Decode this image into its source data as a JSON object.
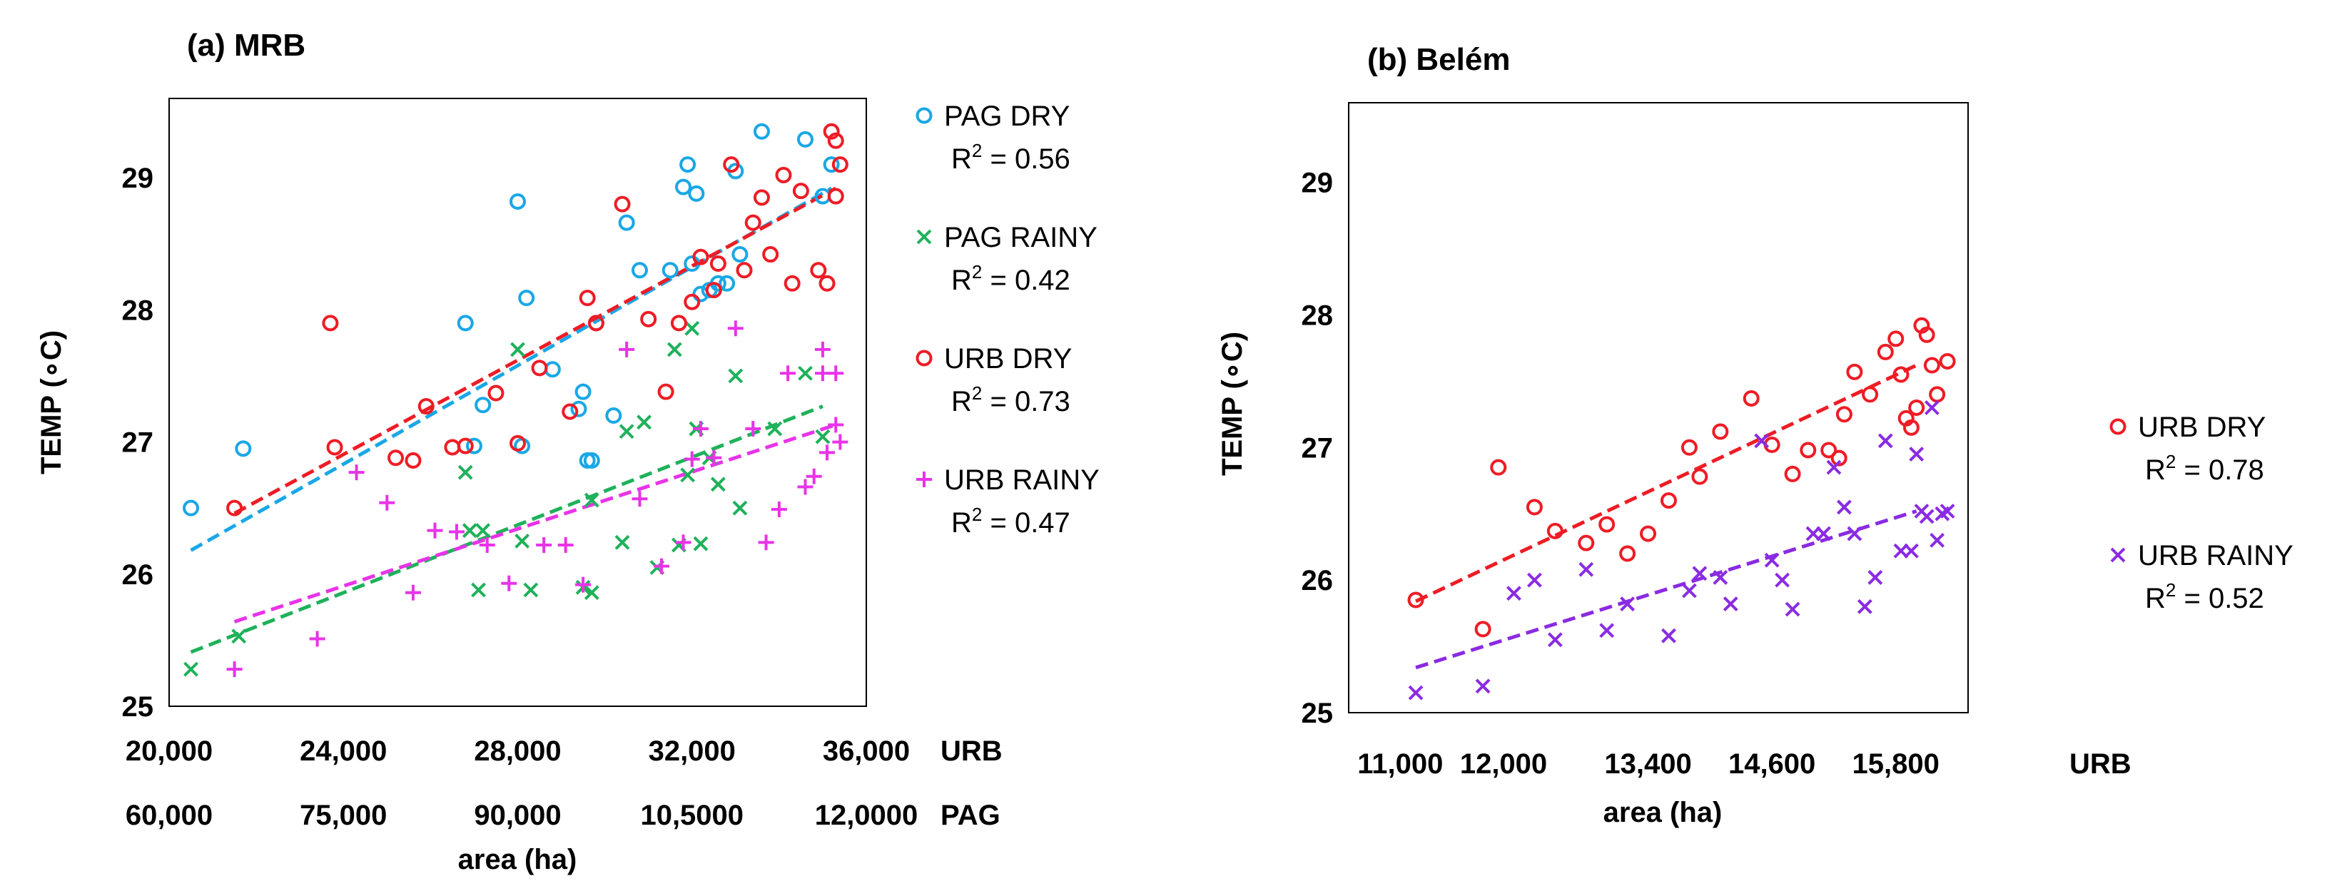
{
  "chart_data": [
    {
      "panel_title": "(a) MRB",
      "type": "scatter",
      "ylabel": "TEMP (∘C)",
      "xlabel": "area (ha)",
      "ylim": [
        25,
        29.6
      ],
      "yticks": [
        "25",
        "26",
        "27",
        "28",
        "29"
      ],
      "x_axes": [
        {
          "name": "URB",
          "range": [
            20000,
            36000
          ],
          "tick_values": [
            20000,
            24000,
            28000,
            32000,
            36000
          ],
          "tick_labels": [
            "20,000",
            "24,000",
            "28,000",
            "32,000",
            "36,000"
          ]
        },
        {
          "name": "PAG",
          "range": [
            60000,
            120000
          ],
          "tick_values": [
            60000,
            75000,
            90000,
            105000,
            120000
          ],
          "tick_labels": [
            "60,000",
            "75,000",
            "90,000",
            "10,5000",
            "12,0000"
          ]
        }
      ],
      "series": [
        {
          "name": "PAG DRY",
          "r2_prefix": "R",
          "r2_sup": "2",
          "r2_value": " = 0.56",
          "marker": "circle",
          "color": "#1aa7e6",
          "trend": {
            "x": [
              20500,
              35200
            ],
            "y": [
              26.18,
              28.92
            ]
          },
          "points": [
            [
              20500,
              26.5
            ],
            [
              21700,
              26.95
            ],
            [
              26800,
              27.9
            ],
            [
              27000,
              26.97
            ],
            [
              27200,
              27.28
            ],
            [
              28000,
              28.82
            ],
            [
              28100,
              26.97
            ],
            [
              28200,
              28.09
            ],
            [
              28800,
              27.55
            ],
            [
              29400,
              27.25
            ],
            [
              29500,
              27.38
            ],
            [
              29600,
              26.86
            ],
            [
              29700,
              26.86
            ],
            [
              29800,
              27.9
            ],
            [
              30200,
              27.2
            ],
            [
              30500,
              28.66
            ],
            [
              30800,
              28.3
            ],
            [
              31500,
              28.3
            ],
            [
              31800,
              28.93
            ],
            [
              31900,
              29.1
            ],
            [
              32000,
              28.35
            ],
            [
              32100,
              28.88
            ],
            [
              32200,
              28.12
            ],
            [
              32400,
              28.15
            ],
            [
              32600,
              28.2
            ],
            [
              32800,
              28.2
            ],
            [
              33000,
              29.05
            ],
            [
              33100,
              28.42
            ],
            [
              33600,
              29.35
            ],
            [
              34600,
              29.29
            ],
            [
              35000,
              28.86
            ],
            [
              35200,
              29.1
            ]
          ]
        },
        {
          "name": "PAG RAINY",
          "r2_prefix": "R",
          "r2_sup": "2",
          "r2_value": " = 0.42",
          "marker": "x",
          "color": "#1fb15a",
          "trend": {
            "x": [
              20500,
              35000
            ],
            "y": [
              25.41,
              27.27
            ]
          },
          "points": [
            [
              20500,
              25.28
            ],
            [
              21600,
              25.53
            ],
            [
              26800,
              26.77
            ],
            [
              26900,
              26.33
            ],
            [
              27100,
              25.88
            ],
            [
              27200,
              26.33
            ],
            [
              28000,
              27.7
            ],
            [
              28100,
              26.25
            ],
            [
              28300,
              25.88
            ],
            [
              29500,
              25.9
            ],
            [
              29700,
              25.86
            ],
            [
              29700,
              26.56
            ],
            [
              30400,
              26.24
            ],
            [
              30500,
              27.08
            ],
            [
              30900,
              27.15
            ],
            [
              31200,
              26.05
            ],
            [
              31600,
              27.7
            ],
            [
              31700,
              26.22
            ],
            [
              31900,
              26.75
            ],
            [
              32000,
              27.86
            ],
            [
              32100,
              27.1
            ],
            [
              32200,
              26.23
            ],
            [
              32400,
              26.88
            ],
            [
              32600,
              26.68
            ],
            [
              33000,
              27.5
            ],
            [
              33100,
              26.5
            ],
            [
              33900,
              27.1
            ],
            [
              34600,
              27.52
            ],
            [
              35000,
              27.04
            ]
          ]
        },
        {
          "name": "URB DRY",
          "r2_prefix": "R",
          "r2_sup": "2",
          "r2_value": " = 0.73",
          "marker": "circle",
          "color": "#ee1c25",
          "trend": {
            "x": [
              21500,
              35300
            ],
            "y": [
              26.46,
              28.92
            ]
          },
          "points": [
            [
              21500,
              26.5
            ],
            [
              23700,
              27.9
            ],
            [
              23800,
              26.96
            ],
            [
              25200,
              26.88
            ],
            [
              25600,
              26.86
            ],
            [
              25900,
              27.27
            ],
            [
              26500,
              26.96
            ],
            [
              26800,
              26.97
            ],
            [
              27500,
              27.37
            ],
            [
              28000,
              26.99
            ],
            [
              28500,
              27.56
            ],
            [
              29200,
              27.23
            ],
            [
              29600,
              28.09
            ],
            [
              29800,
              27.9
            ],
            [
              30400,
              28.8
            ],
            [
              31000,
              27.93
            ],
            [
              31400,
              27.38
            ],
            [
              31700,
              27.9
            ],
            [
              32000,
              28.06
            ],
            [
              32200,
              28.4
            ],
            [
              32500,
              28.15
            ],
            [
              32600,
              28.35
            ],
            [
              32900,
              29.1
            ],
            [
              33200,
              28.3
            ],
            [
              33400,
              28.66
            ],
            [
              33600,
              28.85
            ],
            [
              33800,
              28.42
            ],
            [
              34100,
              29.02
            ],
            [
              34300,
              28.2
            ],
            [
              34500,
              28.9
            ],
            [
              34900,
              28.3
            ],
            [
              35100,
              28.2
            ],
            [
              35200,
              29.35
            ],
            [
              35300,
              28.86
            ],
            [
              35300,
              29.28
            ],
            [
              35400,
              29.1
            ]
          ]
        },
        {
          "name": "URB RAINY",
          "r2_prefix": "R",
          "r2_sup": "2",
          "r2_value": " = 0.47",
          "marker": "plus",
          "color": "#e833e8",
          "trend": {
            "x": [
              21500,
              35300
            ],
            "y": [
              25.64,
              27.13
            ]
          },
          "points": [
            [
              21500,
              25.28
            ],
            [
              23400,
              25.51
            ],
            [
              24300,
              26.77
            ],
            [
              25000,
              26.54
            ],
            [
              25600,
              25.86
            ],
            [
              26100,
              26.33
            ],
            [
              26600,
              26.32
            ],
            [
              27300,
              26.22
            ],
            [
              27800,
              25.93
            ],
            [
              28600,
              26.22
            ],
            [
              29100,
              26.22
            ],
            [
              29500,
              25.92
            ],
            [
              30500,
              27.7
            ],
            [
              30800,
              26.57
            ],
            [
              31300,
              26.06
            ],
            [
              31800,
              26.24
            ],
            [
              32000,
              26.87
            ],
            [
              32200,
              27.1
            ],
            [
              32500,
              26.88
            ],
            [
              33000,
              27.86
            ],
            [
              33400,
              27.1
            ],
            [
              33700,
              26.24
            ],
            [
              34000,
              26.49
            ],
            [
              34200,
              27.52
            ],
            [
              34600,
              26.66
            ],
            [
              34800,
              26.74
            ],
            [
              35000,
              27.52
            ],
            [
              35000,
              27.7
            ],
            [
              35100,
              26.92
            ],
            [
              35300,
              27.52
            ],
            [
              35300,
              27.13
            ],
            [
              35400,
              27.0
            ]
          ]
        }
      ]
    },
    {
      "panel_title": "(b) Belém",
      "type": "scatter",
      "ylabel": "TEMP (∘C)",
      "xlabel": "area (ha)",
      "ylim": [
        25,
        29.6
      ],
      "yticks": [
        "25",
        "26",
        "27",
        "28",
        "29"
      ],
      "x_axes": [
        {
          "name": "URB",
          "range": [
            10500,
            16500
          ],
          "tick_values": [
            11000,
            12000,
            13400,
            14600,
            15800
          ],
          "tick_labels": [
            "11,000",
            "12,000",
            "13,400",
            "14,600",
            "15,800"
          ]
        }
      ],
      "series": [
        {
          "name": "URB DRY",
          "r2_prefix": "R",
          "r2_sup": "2",
          "r2_value": " = 0.78",
          "marker": "circle",
          "color": "#ee1c25",
          "trend": {
            "x": [
              11150,
              16000
            ],
            "y": [
              25.84,
              27.62
            ]
          },
          "points": [
            [
              11150,
              25.85
            ],
            [
              11800,
              25.63
            ],
            [
              11950,
              26.85
            ],
            [
              12300,
              26.55
            ],
            [
              12500,
              26.37
            ],
            [
              12800,
              26.28
            ],
            [
              13000,
              26.42
            ],
            [
              13200,
              26.2
            ],
            [
              13400,
              26.35
            ],
            [
              13600,
              26.6
            ],
            [
              13800,
              27.0
            ],
            [
              13900,
              26.78
            ],
            [
              14100,
              27.12
            ],
            [
              14400,
              27.37
            ],
            [
              14600,
              27.02
            ],
            [
              14800,
              26.8
            ],
            [
              14950,
              26.98
            ],
            [
              15150,
              26.98
            ],
            [
              15250,
              26.92
            ],
            [
              15300,
              27.25
            ],
            [
              15400,
              27.57
            ],
            [
              15550,
              27.4
            ],
            [
              15700,
              27.72
            ],
            [
              15800,
              27.82
            ],
            [
              15850,
              27.55
            ],
            [
              15900,
              27.22
            ],
            [
              15950,
              27.15
            ],
            [
              16000,
              27.3
            ],
            [
              16050,
              27.92
            ],
            [
              16100,
              27.85
            ],
            [
              16150,
              27.62
            ],
            [
              16200,
              27.4
            ],
            [
              16300,
              27.65
            ]
          ]
        },
        {
          "name": "URB RAINY",
          "r2_prefix": "R",
          "r2_sup": "2",
          "r2_value": " = 0.52",
          "marker": "x",
          "color": "#8a2be2",
          "trend": {
            "x": [
              11150,
              16000
            ],
            "y": [
              25.34,
              26.52
            ]
          },
          "points": [
            [
              11150,
              25.15
            ],
            [
              11800,
              25.2
            ],
            [
              12100,
              25.9
            ],
            [
              12300,
              26.0
            ],
            [
              12500,
              25.55
            ],
            [
              12800,
              26.08
            ],
            [
              13000,
              25.62
            ],
            [
              13200,
              25.82
            ],
            [
              13600,
              25.58
            ],
            [
              13800,
              25.92
            ],
            [
              13900,
              26.05
            ],
            [
              14100,
              26.02
            ],
            [
              14200,
              25.82
            ],
            [
              14500,
              27.05
            ],
            [
              14600,
              26.15
            ],
            [
              14700,
              26.0
            ],
            [
              14800,
              25.78
            ],
            [
              15000,
              26.35
            ],
            [
              15100,
              26.35
            ],
            [
              15200,
              26.85
            ],
            [
              15300,
              26.55
            ],
            [
              15400,
              26.35
            ],
            [
              15500,
              25.8
            ],
            [
              15600,
              26.02
            ],
            [
              15700,
              27.05
            ],
            [
              15850,
              26.22
            ],
            [
              15950,
              26.22
            ],
            [
              16000,
              26.95
            ],
            [
              16050,
              26.52
            ],
            [
              16100,
              26.48
            ],
            [
              16150,
              27.3
            ],
            [
              16200,
              26.3
            ],
            [
              16250,
              26.5
            ],
            [
              16300,
              26.52
            ]
          ]
        }
      ]
    }
  ]
}
